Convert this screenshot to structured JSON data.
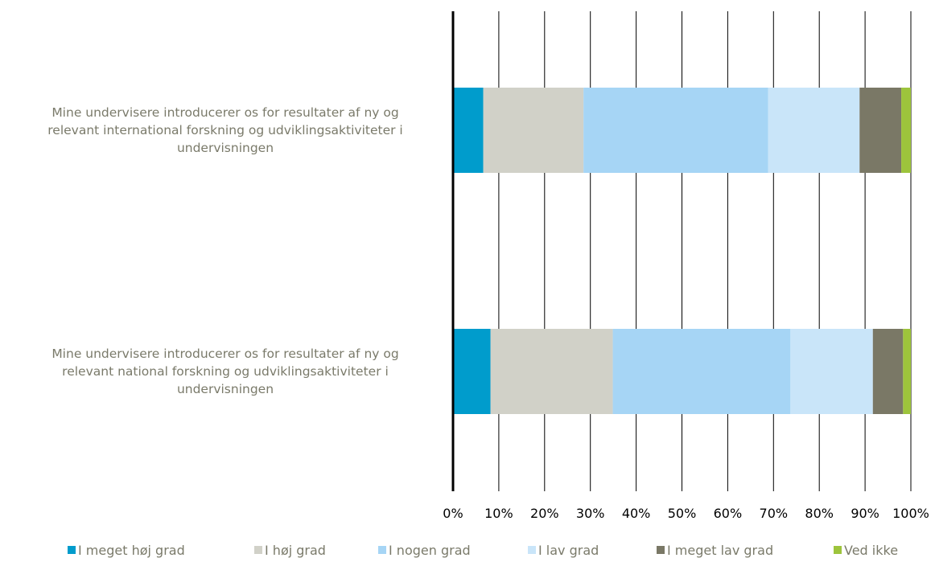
{
  "chart_data": {
    "type": "bar",
    "orientation": "horizontal",
    "stacked": true,
    "title": "",
    "xlabel": "",
    "ylabel": "",
    "xlim": [
      0,
      100
    ],
    "x_ticks": [
      "0%",
      "10%",
      "20%",
      "30%",
      "40%",
      "50%",
      "60%",
      "70%",
      "80%",
      "90%",
      "100%"
    ],
    "grid": "vertical",
    "legend_position": "bottom",
    "categories": [
      [
        "Mine undervisere introducerer os for resultater af ny og",
        "relevant international forskning og udviklingsaktiviteter i",
        "undervisningen"
      ],
      [
        "Mine undervisere introducerer os for resultater af ny og",
        "relevant national forskning og udviklingsaktiviteter i",
        "undervisningen"
      ]
    ],
    "series": [
      {
        "name": "I meget høj grad",
        "color": "#009ccc",
        "values": [
          6.6,
          8.2
        ]
      },
      {
        "name": "I høj grad",
        "color": "#d1d1c8",
        "values": [
          21.9,
          26.7
        ]
      },
      {
        "name": "I nogen grad",
        "color": "#a6d5f5",
        "values": [
          40.3,
          38.8
        ]
      },
      {
        "name": "I lav grad",
        "color": "#c9e5f9",
        "values": [
          20.0,
          18.0
        ]
      },
      {
        "name": "I meget lav grad",
        "color": "#7a7866",
        "values": [
          9.1,
          6.6
        ]
      },
      {
        "name": "Ved ikke",
        "color": "#9dc43c",
        "values": [
          2.1,
          1.7
        ]
      }
    ]
  }
}
